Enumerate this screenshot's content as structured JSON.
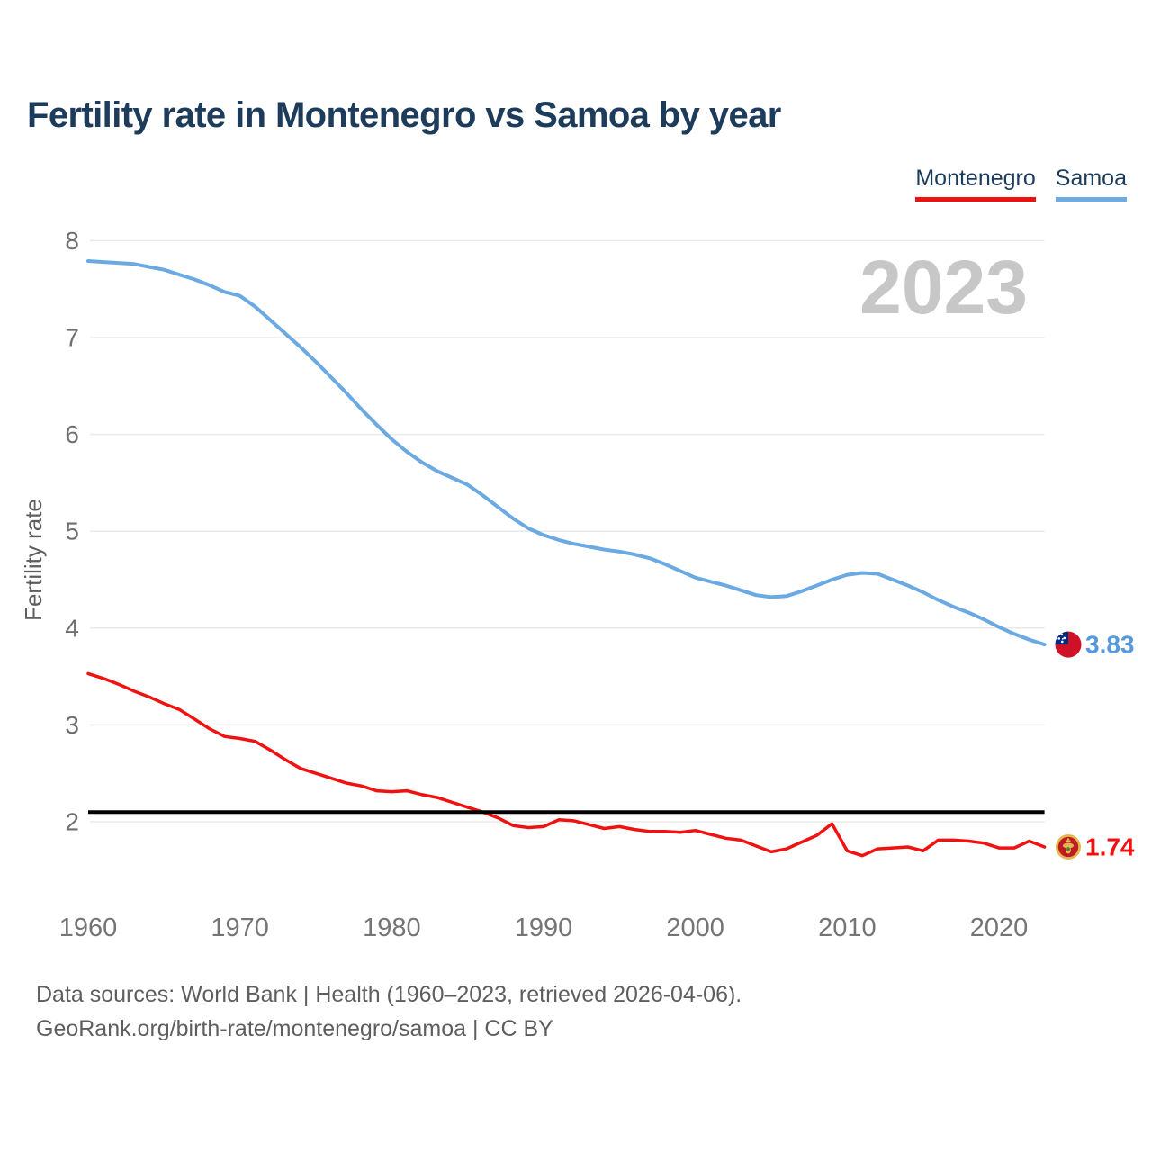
{
  "title": "Fertility rate in Montenegro vs Samoa by year",
  "legend": {
    "montenegro": "Montenegro",
    "samoa": "Samoa"
  },
  "watermark": "2023",
  "footer": {
    "line1": "Data sources: World Bank | Health (1960–2023, retrieved 2026-04-06).",
    "line2": "GeoRank.org/birth-rate/montenegro/samoa | CC BY"
  },
  "chart_data": {
    "type": "line",
    "title": "Fertility rate in Montenegro vs Samoa by year",
    "xlabel": "",
    "ylabel": "Fertility rate",
    "x_ticks": [
      1960,
      1970,
      1980,
      1990,
      2000,
      2010,
      2020
    ],
    "y_ticks": [
      2,
      3,
      4,
      5,
      6,
      7,
      8
    ],
    "xlim": [
      1960,
      2023
    ],
    "ylim": [
      1.5,
      8.3
    ],
    "grid": true,
    "legend_position": "top-right",
    "annotation": "2023",
    "reference_line": {
      "value": 2.1,
      "color": "#000000"
    },
    "x": [
      1960,
      1961,
      1962,
      1963,
      1964,
      1965,
      1966,
      1967,
      1968,
      1969,
      1970,
      1971,
      1972,
      1973,
      1974,
      1975,
      1976,
      1977,
      1978,
      1979,
      1980,
      1981,
      1982,
      1983,
      1984,
      1985,
      1986,
      1987,
      1988,
      1989,
      1990,
      1991,
      1992,
      1993,
      1994,
      1995,
      1996,
      1997,
      1998,
      1999,
      2000,
      2001,
      2002,
      2003,
      2004,
      2005,
      2006,
      2007,
      2008,
      2009,
      2010,
      2011,
      2012,
      2013,
      2014,
      2015,
      2016,
      2017,
      2018,
      2019,
      2020,
      2021,
      2022,
      2023
    ],
    "series": [
      {
        "name": "Samoa",
        "color": "#6aa9e1",
        "label_color": "#549ade",
        "end_label": "3.83",
        "flag": "samoa-flag-icon",
        "values": [
          7.79,
          7.78,
          7.77,
          7.76,
          7.73,
          7.7,
          7.65,
          7.6,
          7.54,
          7.47,
          7.43,
          7.32,
          7.18,
          7.04,
          6.9,
          6.75,
          6.59,
          6.43,
          6.26,
          6.1,
          5.95,
          5.82,
          5.71,
          5.62,
          5.55,
          5.48,
          5.37,
          5.25,
          5.13,
          5.03,
          4.96,
          4.91,
          4.87,
          4.84,
          4.81,
          4.79,
          4.76,
          4.72,
          4.66,
          4.59,
          4.52,
          4.48,
          4.44,
          4.39,
          4.34,
          4.32,
          4.33,
          4.38,
          4.44,
          4.5,
          4.55,
          4.57,
          4.56,
          4.5,
          4.44,
          4.37,
          4.29,
          4.22,
          4.16,
          4.09,
          4.01,
          3.94,
          3.88,
          3.83
        ]
      },
      {
        "name": "Montenegro",
        "color": "#f01111",
        "label_color": "#f01111",
        "end_label": "1.74",
        "flag": "montenegro-flag-icon",
        "values": [
          3.53,
          3.48,
          3.42,
          3.35,
          3.29,
          3.22,
          3.16,
          3.06,
          2.96,
          2.88,
          2.86,
          2.83,
          2.74,
          2.64,
          2.55,
          2.5,
          2.45,
          2.4,
          2.37,
          2.32,
          2.31,
          2.32,
          2.28,
          2.25,
          2.2,
          2.15,
          2.1,
          2.04,
          1.96,
          1.94,
          1.95,
          2.02,
          2.01,
          1.97,
          1.93,
          1.95,
          1.92,
          1.9,
          1.9,
          1.89,
          1.91,
          1.87,
          1.83,
          1.81,
          1.75,
          1.69,
          1.72,
          1.79,
          1.86,
          1.98,
          1.7,
          1.65,
          1.72,
          1.73,
          1.74,
          1.7,
          1.81,
          1.81,
          1.8,
          1.78,
          1.73,
          1.73,
          1.8,
          1.74
        ]
      }
    ],
    "style": {
      "grid_color": "#eaeaea",
      "axis_text_color": "#757575",
      "y_axis_title_color": "#5e5e5e",
      "watermark_color": "#c7c7c7"
    }
  }
}
